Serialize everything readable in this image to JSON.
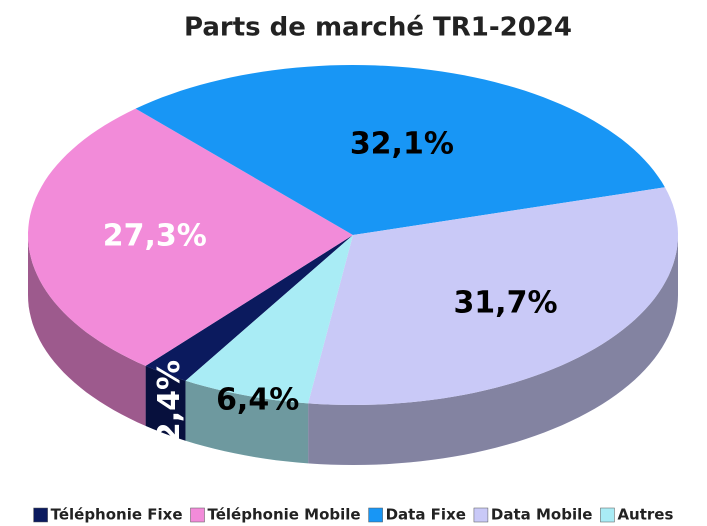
{
  "chart_data": {
    "type": "pie",
    "title": "Parts de marché TR1-2024",
    "categories": [
      "Téléphonie Fixe",
      "Téléphonie Mobile",
      "Data Fixe",
      "Data Mobile",
      "Autres"
    ],
    "values": [
      2.4,
      27.3,
      32.1,
      31.7,
      6.4
    ],
    "value_labels": [
      "2,4%",
      "27,3%",
      "32,1%",
      "31,7%",
      "6,4%"
    ],
    "colors": [
      "#0b1a5e",
      "#f28bd9",
      "#1896f5",
      "#c9c9f7",
      "#a9ecf5"
    ],
    "value_label_colors": [
      "#ffffff",
      "#ffffff",
      "#000000",
      "#000000",
      "#000000"
    ]
  }
}
